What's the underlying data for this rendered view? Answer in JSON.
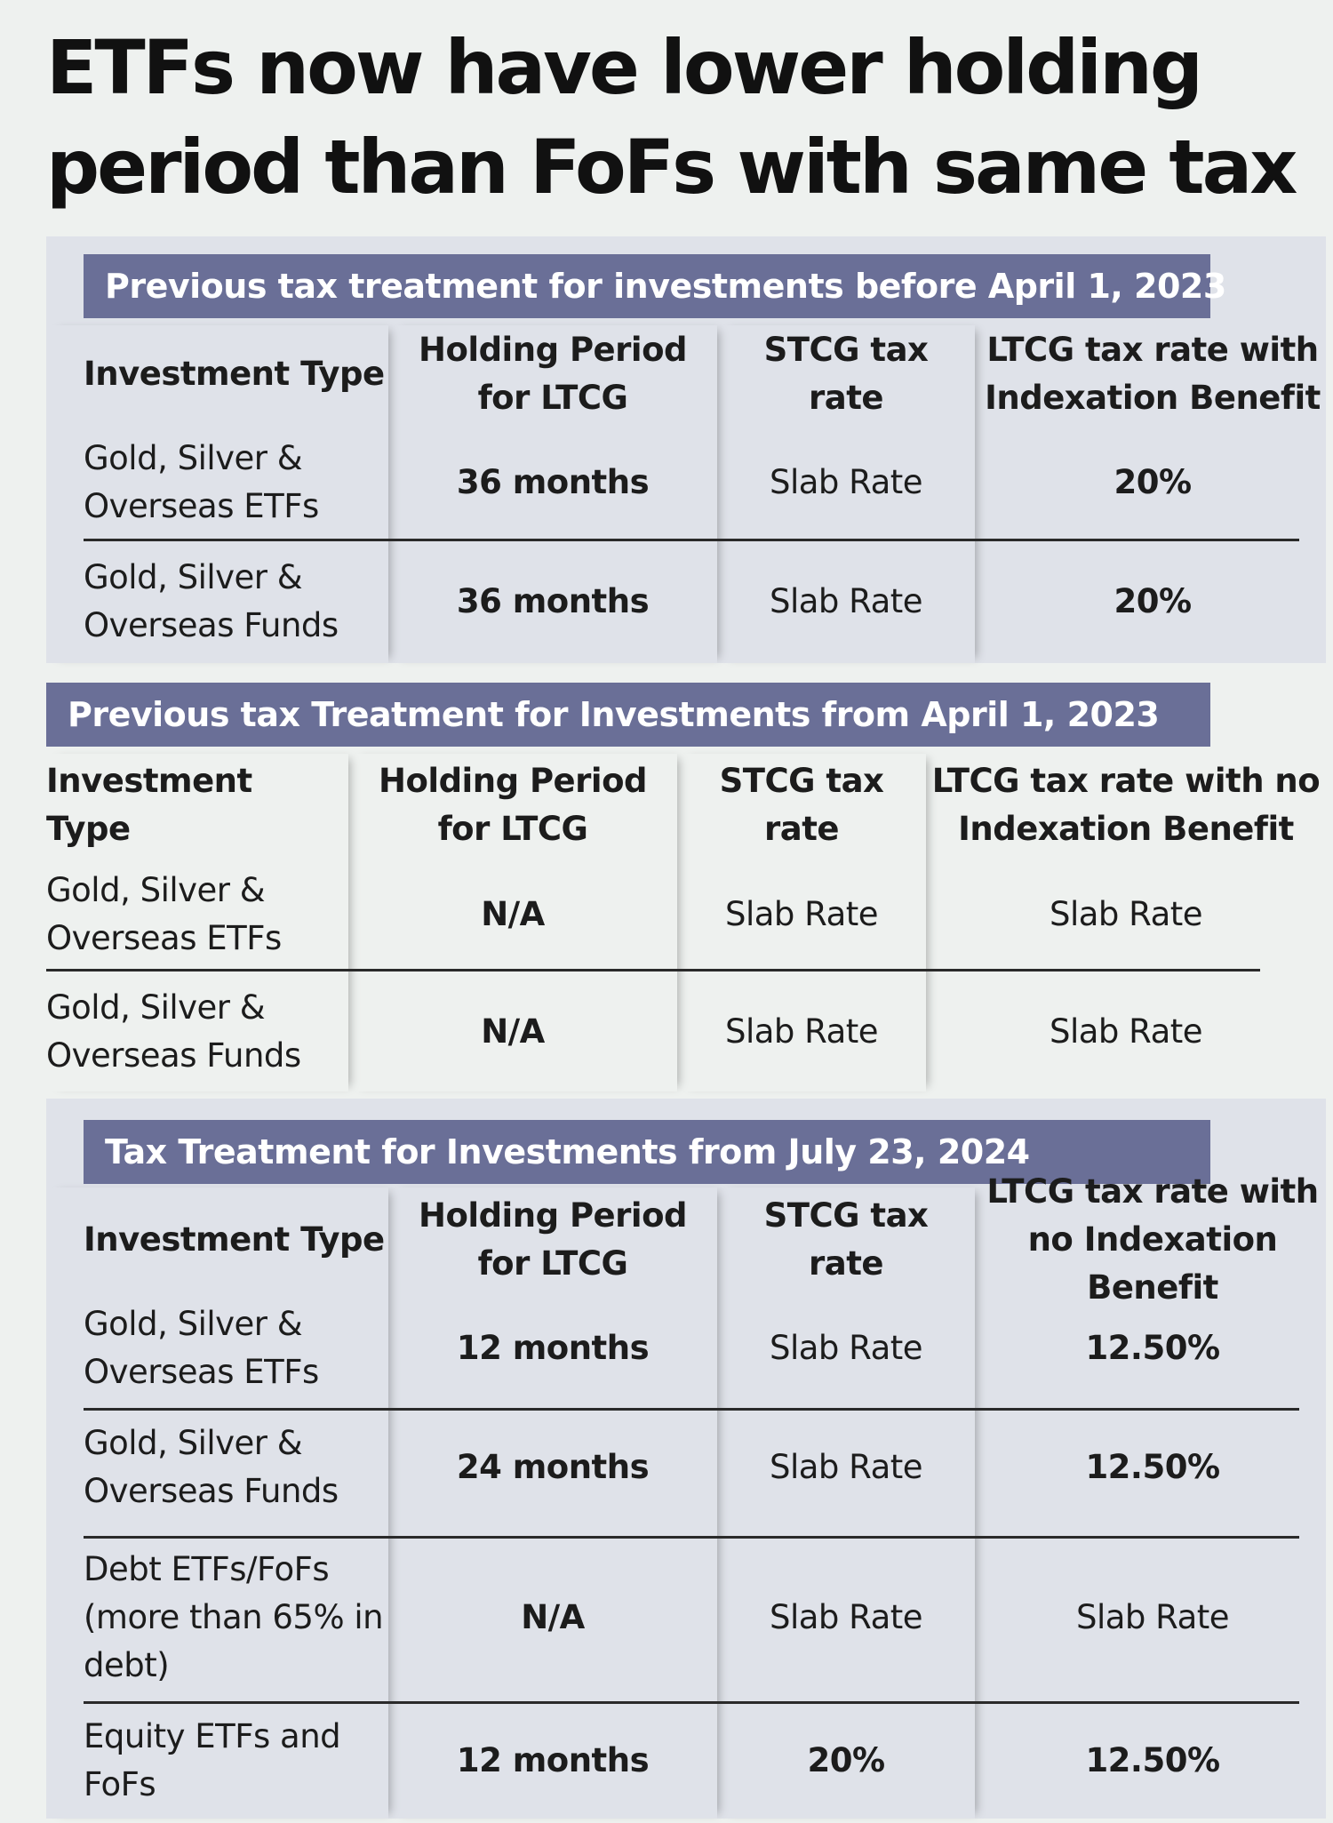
{
  "title": "ETFs now have lower holding period than FoFs with same tax",
  "sections": [
    {
      "header": "Previous tax treatment for investments before April 1, 2023",
      "columns": [
        "Investment Type",
        "Holding Period for LTCG",
        "STCG tax rate",
        "LTCG tax rate with Indexation Benefit"
      ],
      "rows": [
        [
          "Gold, Silver & Overseas ETFs",
          "36 months",
          "Slab Rate",
          "20%"
        ],
        [
          "Gold, Silver & Overseas Funds",
          "36 months",
          "Slab Rate",
          "20%"
        ]
      ]
    },
    {
      "header": "Previous tax Treatment for Investments from April 1, 2023",
      "columns": [
        "Investment Type",
        "Holding Period for LTCG",
        "STCG tax rate",
        "LTCG tax rate with no Indexation Benefit"
      ],
      "rows": [
        [
          "Gold, Silver & Overseas ETFs",
          "N/A",
          "Slab Rate",
          "Slab Rate"
        ],
        [
          "Gold, Silver & Overseas Funds",
          "N/A",
          "Slab Rate",
          "Slab Rate"
        ]
      ]
    },
    {
      "header": "Tax Treatment for Investments from  July 23, 2024",
      "columns": [
        "Investment Type",
        "Holding Period for LTCG",
        "STCG tax rate",
        "LTCG tax rate with no Indexation Benefit"
      ],
      "rows": [
        [
          "Gold, Silver & Overseas ETFs",
          "12 months",
          "Slab Rate",
          "12.50%"
        ],
        [
          "Gold, Silver & Overseas Funds",
          "24 months",
          "Slab Rate",
          "12.50%"
        ],
        [
          "Debt ETFs/FoFs (more than 65% in debt)",
          "N/A",
          "Slab Rate",
          "Slab Rate"
        ],
        [
          "Equity ETFs and FoFs",
          "12 months",
          "20%",
          "12.50%"
        ]
      ]
    }
  ]
}
